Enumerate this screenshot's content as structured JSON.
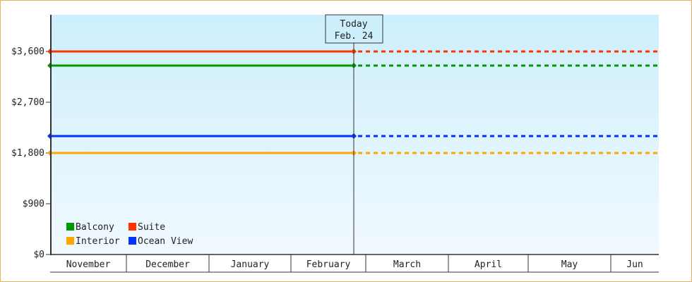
{
  "chart_data": {
    "type": "line",
    "ylim": [
      0,
      4250
    ],
    "y_ticks": [
      0,
      900,
      1800,
      2700,
      3600
    ],
    "y_tick_labels": [
      "$0",
      "$900",
      "$1,800",
      "$2,700",
      "$3,600"
    ],
    "x_months": [
      "November",
      "December",
      "January",
      "February",
      "March",
      "April",
      "May",
      "Jun"
    ],
    "today": {
      "title": "Today",
      "date": "Feb. 24"
    },
    "grid": false,
    "legend_position": "bottom-left",
    "background_gradient": [
      "#cdeffc",
      "#f0f9fe"
    ],
    "series": [
      {
        "name": "Balcony",
        "color": "#009900",
        "value": 3350
      },
      {
        "name": "Suite",
        "color": "#ff3300",
        "value": 3600
      },
      {
        "name": "Interior",
        "color": "#ffa500",
        "value": 1800
      },
      {
        "name": "Ocean View",
        "color": "#0033ff",
        "value": 2100
      }
    ]
  }
}
